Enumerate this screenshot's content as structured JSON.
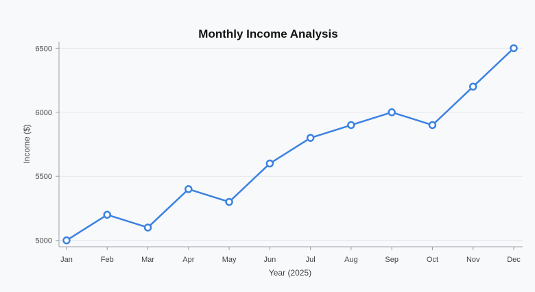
{
  "chart_data": {
    "type": "line",
    "title": "Monthly Income Analysis",
    "xlabel": "Year (2025)",
    "ylabel": "Income ($)",
    "categories": [
      "Jan",
      "Feb",
      "Mar",
      "Apr",
      "May",
      "Jun",
      "Jul",
      "Aug",
      "Sep",
      "Oct",
      "Nov",
      "Dec"
    ],
    "series": [
      {
        "values": [
          5000,
          5200,
          5100,
          5400,
          5300,
          5600,
          5800,
          5900,
          6000,
          5900,
          6200,
          6500
        ],
        "color": "#3b82e0"
      }
    ],
    "ylim": [
      4950,
      6550
    ],
    "yticks": [
      5000,
      5500,
      6000,
      6500
    ],
    "grid": true,
    "legend": "none"
  }
}
